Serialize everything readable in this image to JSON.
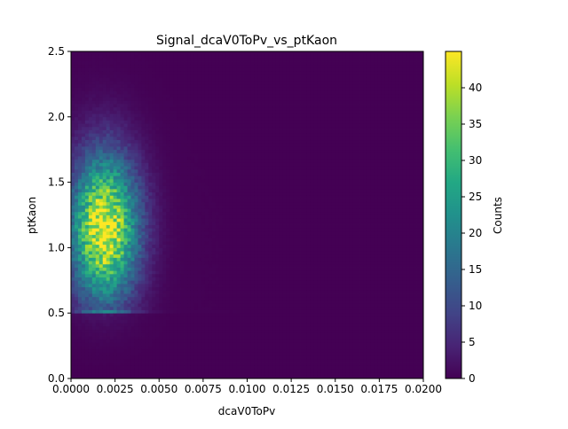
{
  "chart_data": {
    "type": "heatmap",
    "title": "Signal_dcaV0ToPv_vs_ptKaon",
    "xlabel": "dcaV0ToPv",
    "ylabel": "ptKaon",
    "xlim": [
      0.0,
      0.02
    ],
    "ylim": [
      0.0,
      2.5
    ],
    "x_ticks": [
      "0.0000",
      "0.0025",
      "0.0050",
      "0.0075",
      "0.0100",
      "0.0125",
      "0.0150",
      "0.0175",
      "0.0200"
    ],
    "y_ticks": [
      "0.0",
      "0.5",
      "1.0",
      "1.5",
      "2.0",
      "2.5"
    ],
    "colormap": "viridis",
    "colorbar": {
      "label": "Counts",
      "min": 0,
      "max": 45,
      "ticks": [
        "0",
        "5",
        "10",
        "15",
        "20",
        "25",
        "30",
        "35",
        "40"
      ]
    },
    "peak": {
      "x": 0.002,
      "y": 1.2,
      "value": 45
    },
    "distribution": "counts concentrated at small dcaV0ToPv (0–0.005) and ptKaon 0.5–2.0, peaking near dcaV0ToPv≈0.002, ptKaon≈1.2; near zero for dcaV0ToPv > 0.008"
  }
}
